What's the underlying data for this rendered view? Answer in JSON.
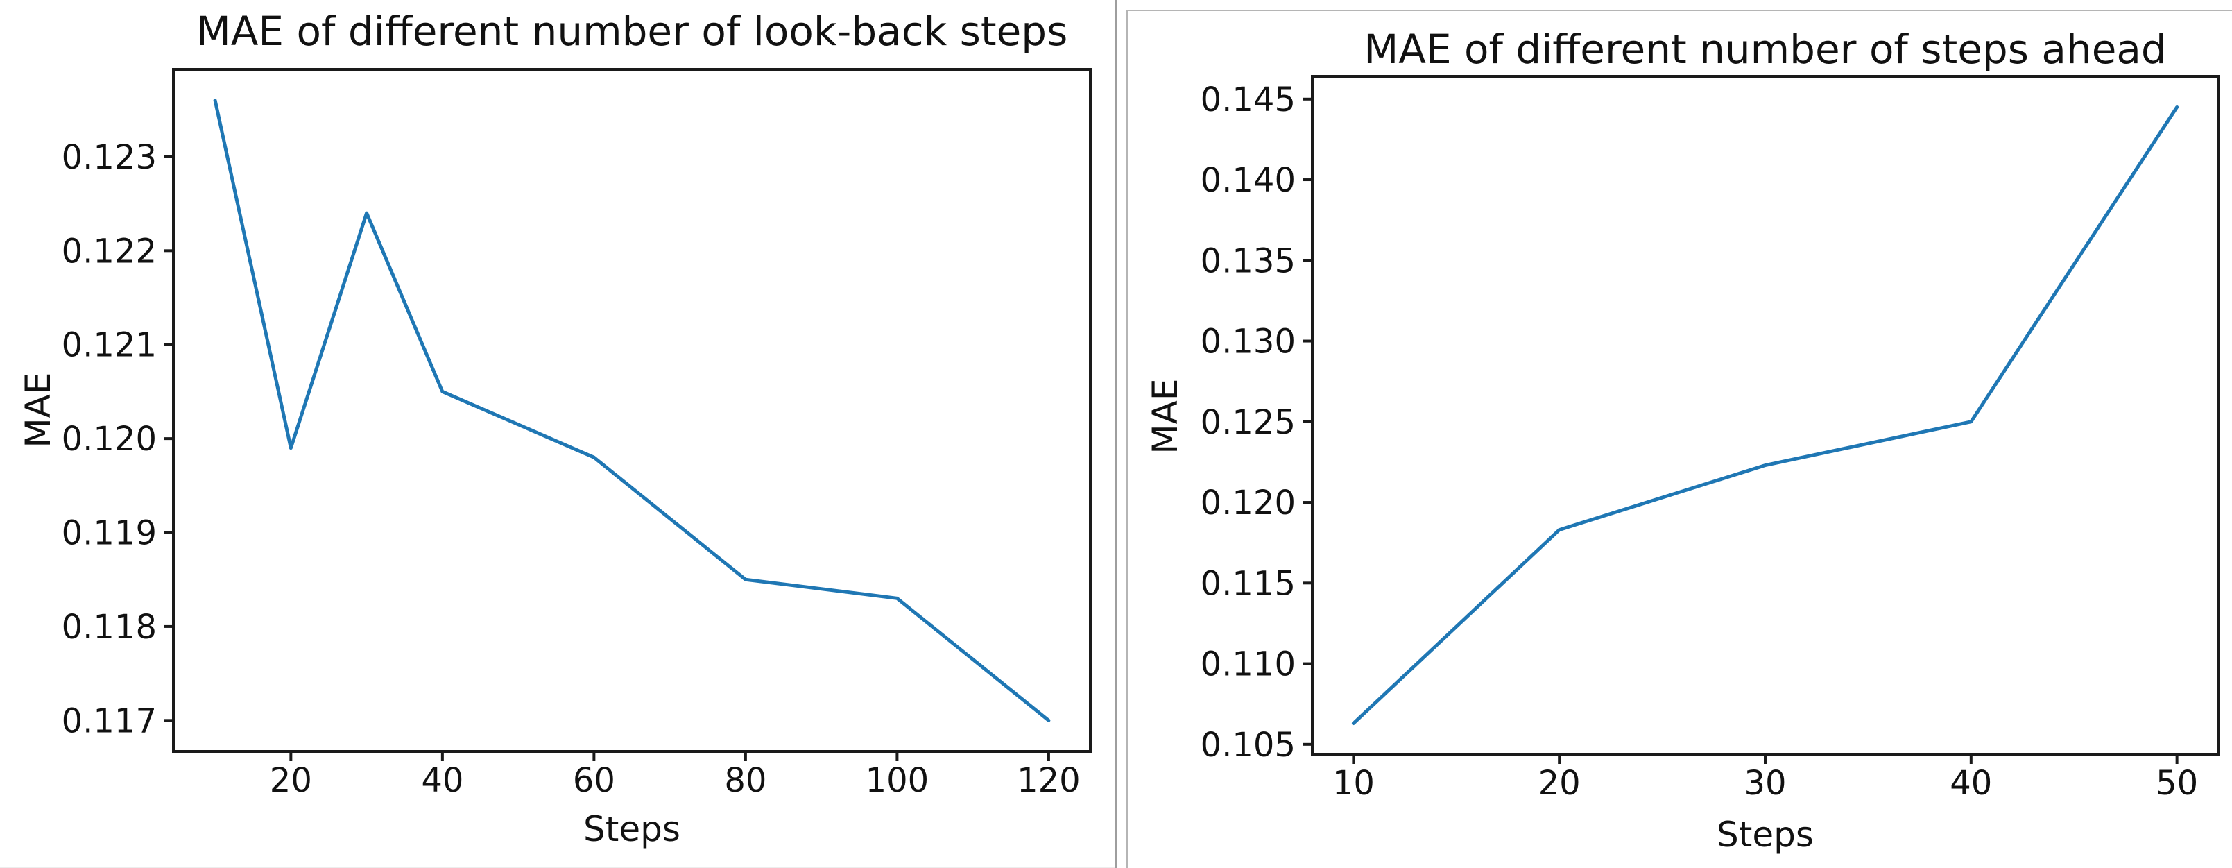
{
  "page": {
    "background": "#ffffff",
    "divider_color": "#9e9e9e",
    "right_panel_border_color": "#b5b5b5",
    "text_color": "#111111"
  },
  "chart_data": [
    {
      "type": "line",
      "title": "MAE of different number of look-back steps",
      "xlabel": "Steps",
      "ylabel": "MAE",
      "x": [
        10,
        20,
        30,
        40,
        60,
        80,
        100,
        120
      ],
      "y": [
        0.1236,
        0.1199,
        0.1224,
        0.1205,
        0.1198,
        0.1185,
        0.1183,
        0.117
      ],
      "x_ticks": [
        20,
        40,
        60,
        80,
        100,
        120
      ],
      "x_tick_labels": [
        "20",
        "40",
        "60",
        "80",
        "100",
        "120"
      ],
      "y_ticks": [
        0.117,
        0.118,
        0.119,
        0.12,
        0.121,
        0.122,
        0.123
      ],
      "y_tick_labels": [
        "0.117",
        "0.118",
        "0.119",
        "0.120",
        "0.121",
        "0.122",
        "0.123"
      ],
      "xlim": [
        4.5,
        125.5
      ],
      "ylim": [
        0.11667,
        0.12393
      ],
      "line_color": "#1f77b4",
      "grid": false,
      "legend": null
    },
    {
      "type": "line",
      "title": "MAE of different number of steps ahead",
      "xlabel": "Steps",
      "ylabel": "MAE",
      "x": [
        10,
        20,
        30,
        40,
        50
      ],
      "y": [
        0.1063,
        0.1183,
        0.1223,
        0.125,
        0.1445
      ],
      "x_ticks": [
        10,
        20,
        30,
        40,
        50
      ],
      "x_tick_labels": [
        "10",
        "20",
        "30",
        "40",
        "50"
      ],
      "y_ticks": [
        0.105,
        0.11,
        0.115,
        0.12,
        0.125,
        0.13,
        0.135,
        0.14,
        0.145
      ],
      "y_tick_labels": [
        "0.105",
        "0.110",
        "0.115",
        "0.120",
        "0.125",
        "0.130",
        "0.135",
        "0.140",
        "0.145"
      ],
      "xlim": [
        8,
        52
      ],
      "ylim": [
        0.10439,
        0.14641
      ],
      "line_color": "#1f77b4",
      "grid": false,
      "legend": null
    }
  ]
}
